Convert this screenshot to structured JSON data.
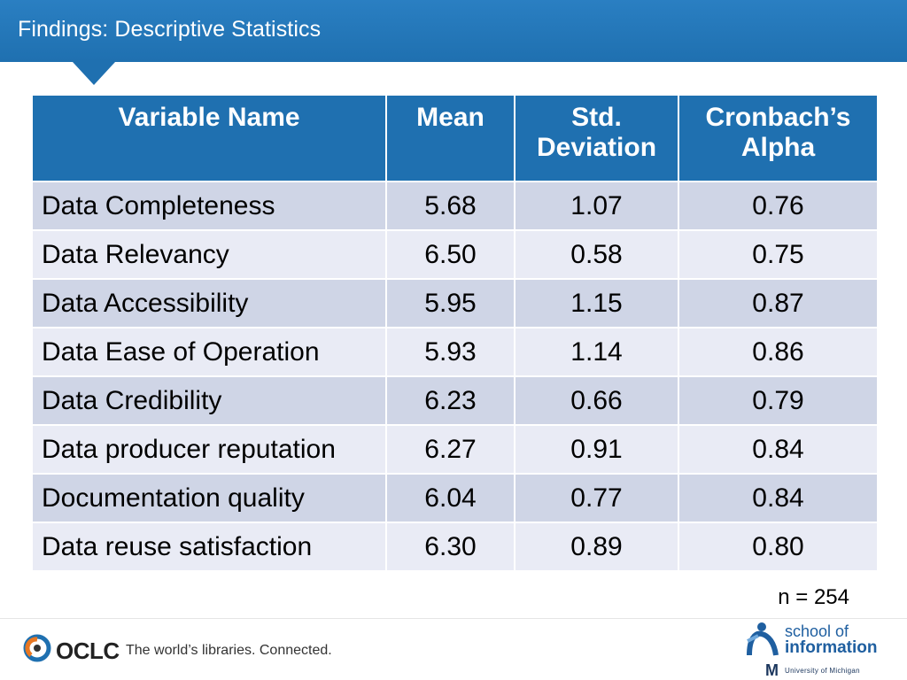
{
  "header": {
    "title": "Findings: Descriptive Statistics"
  },
  "table": {
    "columns": [
      "Variable Name",
      "Mean",
      "Std.\nDeviation",
      "Cronbach’s Alpha"
    ],
    "rows": [
      [
        "Data Completeness",
        "5.68",
        "1.07",
        "0.76"
      ],
      [
        "Data Relevancy",
        "6.50",
        "0.58",
        "0.75"
      ],
      [
        "Data Accessibility",
        "5.95",
        "1.15",
        "0.87"
      ],
      [
        "Data Ease of Operation",
        "5.93",
        "1.14",
        "0.86"
      ],
      [
        "Data Credibility",
        "6.23",
        "0.66",
        "0.79"
      ],
      [
        "Data producer reputation",
        "6.27",
        "0.91",
        "0.84"
      ],
      [
        "Documentation quality",
        "6.04",
        "0.77",
        "0.84"
      ],
      [
        "Data reuse satisfaction",
        "6.30",
        "0.89",
        "0.80"
      ]
    ]
  },
  "note": "n = 254",
  "footer": {
    "oclc_word": "OCLC",
    "tagline": "The world’s libraries. Connected.",
    "si_school": "school of",
    "si_information": "information",
    "si_m": "M",
    "si_university": "University of Michigan"
  },
  "colors": {
    "header_blue": "#1f70b0",
    "row_dark": "#cfd5e6",
    "row_light": "#e9ebf5"
  }
}
